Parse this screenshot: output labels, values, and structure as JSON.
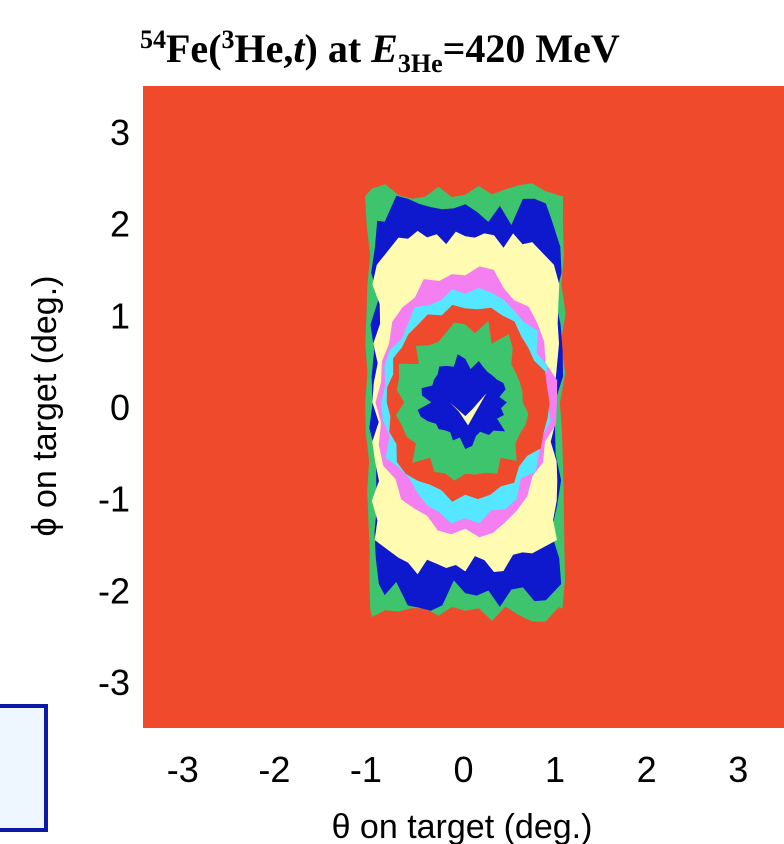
{
  "chart_data": {
    "type": "heatmap",
    "title": {
      "sup_mass": "54",
      "element": "Fe(",
      "sup_he": "3",
      "reaction": "He,",
      "particle": "t",
      "close": ")  at  ",
      "energy_symbol": "E",
      "energy_sub": "3He",
      "energy_value": "=420 MeV"
    },
    "xlabel": "θ on target (deg.)",
    "ylabel": "ϕ on target (deg.)",
    "xlim": [
      -3.5,
      3.5
    ],
    "ylim": [
      -3.5,
      3.5
    ],
    "xticks": [
      "-3",
      "-2",
      "-1",
      "0",
      "1",
      "2",
      "3"
    ],
    "yticks": [
      "3",
      "2",
      "1",
      "0",
      "-1",
      "-2",
      "-3"
    ],
    "grid": false,
    "colors": {
      "background": "#ef4a2c",
      "levels": [
        "#3dc46c",
        "#0e19cd",
        "#fffbb0",
        "#f37ff0",
        "#55e7ff",
        "#ef4a2c",
        "#3dc46c",
        "#0e19cd",
        "#fffbb0"
      ],
      "inset_border": "#0d1aa8",
      "inset_fill": "#eef6ff"
    },
    "contour_region": {
      "theta_range": [
        -1.05,
        1.1
      ],
      "phi_range": [
        -2.25,
        2.4
      ]
    }
  }
}
